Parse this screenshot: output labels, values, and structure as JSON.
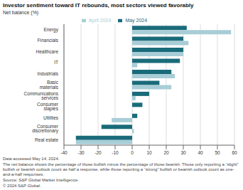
{
  "chart_data": {
    "type": "bar",
    "orientation": "horizontal",
    "title": "Investor sentiment toward IT rebounds, most sectors viewed favorably",
    "subtitle": "Net balance (%)",
    "categories": [
      "Energy",
      "Financials",
      "Healthcare",
      "IT",
      "Industrials",
      "Basic materials",
      "Communications services",
      "Consumer staples",
      "Utilities",
      "Consumer discretionary",
      "Real estate"
    ],
    "series": [
      {
        "name": "May 2024",
        "color": "#1a6b7a",
        "values": [
          32,
          30,
          30,
          28,
          23,
          16,
          10,
          6,
          3,
          -18,
          -33
        ]
      },
      {
        "name": "April 2024",
        "color": "#a8cdd6",
        "values": [
          58,
          33,
          30,
          3,
          25,
          23,
          2,
          0,
          -12,
          1,
          -33
        ]
      }
    ],
    "xlim": [
      -40,
      60
    ],
    "xticks": [
      -40,
      -30,
      -20,
      -10,
      0,
      10,
      20,
      30,
      40,
      50,
      60
    ],
    "grid": true,
    "legend": "top",
    "annotations": [
      "Data accessed May 14, 2024.",
      "The net balance shows the percentage of those bullish minus the percentage of those bearish. Those only reporting a “slight” bullish or bearish outlook count as half a response, while those reporting a “strong” bullish or bearish outlook count as one-and-a-half responses.",
      "Source: S&P Global Market Intelligence.",
      "© 2024 S&P Global."
    ]
  }
}
